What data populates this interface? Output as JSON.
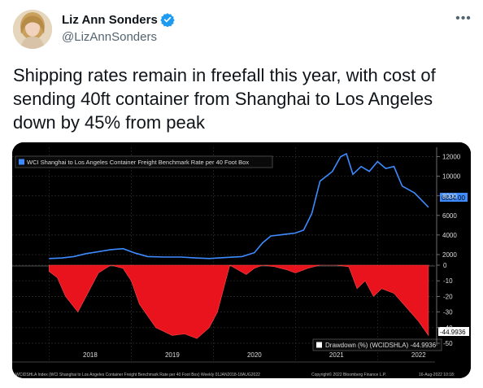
{
  "author": {
    "name": "Liz Ann Sonders",
    "handle": "@LizAnnSonders"
  },
  "icons": {
    "verified": "verified-badge-icon",
    "more": "more-options-icon"
  },
  "tweet": {
    "text": "Shipping rates remain in freefall this year, with cost of sending 40ft container from Shanghai to Los Angeles down by 45% from peak"
  },
  "colors": {
    "line": "#3d8bff",
    "drawdown": "#e8131c",
    "verified": "#1d9bf0"
  },
  "chart_data": [
    {
      "type": "line",
      "title": "WCI Shanghai to Los Angeles Container Freight Benchmark Rate per 40 Foot Box",
      "last_value_label": "6834.00",
      "x": [
        2018.0,
        2018.15,
        2018.3,
        2018.45,
        2018.6,
        2018.75,
        2018.9,
        2019.05,
        2019.2,
        2019.4,
        2019.6,
        2019.8,
        2019.95,
        2020.15,
        2020.35,
        2020.5,
        2020.6,
        2020.7,
        2020.8,
        2020.9,
        2021.0,
        2021.1,
        2021.2,
        2021.3,
        2021.45,
        2021.55,
        2021.62,
        2021.7,
        2021.8,
        2021.9,
        2022.0,
        2022.1,
        2022.2,
        2022.3,
        2022.45,
        2022.62
      ],
      "y": [
        1600,
        1650,
        1800,
        2100,
        2300,
        2500,
        2600,
        2150,
        1800,
        1750,
        1750,
        1650,
        1600,
        1700,
        1800,
        2200,
        3200,
        3900,
        4000,
        4100,
        4200,
        4500,
        6200,
        9500,
        10500,
        12000,
        12300,
        10200,
        11000,
        10500,
        11500,
        10800,
        11000,
        9000,
        8300,
        6834
      ],
      "yticks": [
        "2000",
        "4000",
        "6000",
        "8000",
        "10000",
        "12000"
      ],
      "ylim": [
        1000,
        12800
      ],
      "grid": true
    },
    {
      "type": "area",
      "legend": "Drawdown (%) (WCIDSHLA) -44.9936",
      "last_value_label": "-44.9936",
      "x": [
        2018.0,
        2018.1,
        2018.2,
        2018.35,
        2018.5,
        2018.6,
        2018.75,
        2018.9,
        2019.0,
        2019.1,
        2019.3,
        2019.5,
        2019.65,
        2019.8,
        2019.95,
        2020.05,
        2020.2,
        2020.3,
        2020.4,
        2020.5,
        2020.6,
        2020.75,
        2020.9,
        2021.0,
        2021.15,
        2021.3,
        2021.5,
        2021.65,
        2021.75,
        2021.85,
        2021.95,
        2022.05,
        2022.2,
        2022.35,
        2022.5,
        2022.62
      ],
      "y": [
        -4,
        -8,
        -20,
        -30,
        -15,
        -5,
        0,
        -2,
        -10,
        -25,
        -40,
        -45,
        -44,
        -47,
        -40,
        -30,
        0,
        -3,
        -6,
        -2,
        0,
        -1,
        -3,
        -5,
        -2,
        0,
        0,
        -1,
        -15,
        -10,
        -20,
        -15,
        -18,
        -27,
        -36,
        -44.99
      ],
      "yticks": [
        "0",
        "-10",
        "-20",
        "-30",
        "-40",
        "-50"
      ],
      "ylim": [
        -50,
        0
      ],
      "grid": true
    }
  ],
  "x_axis_labels": [
    "2018",
    "2019",
    "2020",
    "2021",
    "2022"
  ],
  "footer": {
    "left": "WCIDSHLA Index (WCI Shanghai to Los Angeles Container Freight Benchmark Rate per 40 Foot Box) Weekly 01JAN2018-18AUG2022",
    "center": "Copyright© 2022 Bloomberg Finance L.P.",
    "right": "16-Aug-2022 10:18:"
  }
}
